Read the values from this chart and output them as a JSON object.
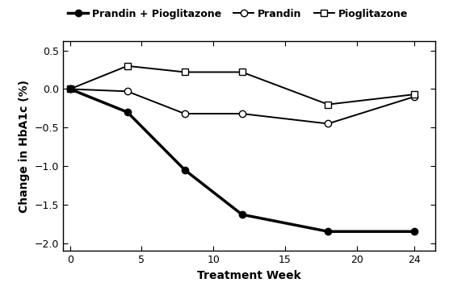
{
  "xlabel": "Treatment Week",
  "ylabel": "Change in HbA1c (%)",
  "xlim": [
    -0.5,
    25.5
  ],
  "ylim": [
    -2.1,
    0.62
  ],
  "yticks": [
    -2.0,
    -1.5,
    -1.0,
    -0.5,
    0.0,
    0.5
  ],
  "xticks": [
    0,
    5,
    10,
    15,
    20,
    24
  ],
  "weeks": [
    0,
    4,
    8,
    12,
    18,
    24
  ],
  "combo": [
    0.0,
    -0.3,
    -1.05,
    -1.63,
    -1.85,
    -1.85
  ],
  "prandin": [
    0.0,
    -0.03,
    -0.32,
    -0.32,
    -0.45,
    -0.1
  ],
  "pioglitazone": [
    0.0,
    0.3,
    0.22,
    0.22,
    -0.2,
    -0.07
  ],
  "combo_color": "#000000",
  "prandin_color": "#000000",
  "pioglitazone_color": "#000000",
  "combo_label": "Prandin + Pioglitazone",
  "prandin_label": "Prandin",
  "pioglitazone_label": "Pioglitazone",
  "background_color": "#ffffff",
  "linewidth_thick": 2.5,
  "linewidth_thin": 1.4,
  "marker_size": 6
}
